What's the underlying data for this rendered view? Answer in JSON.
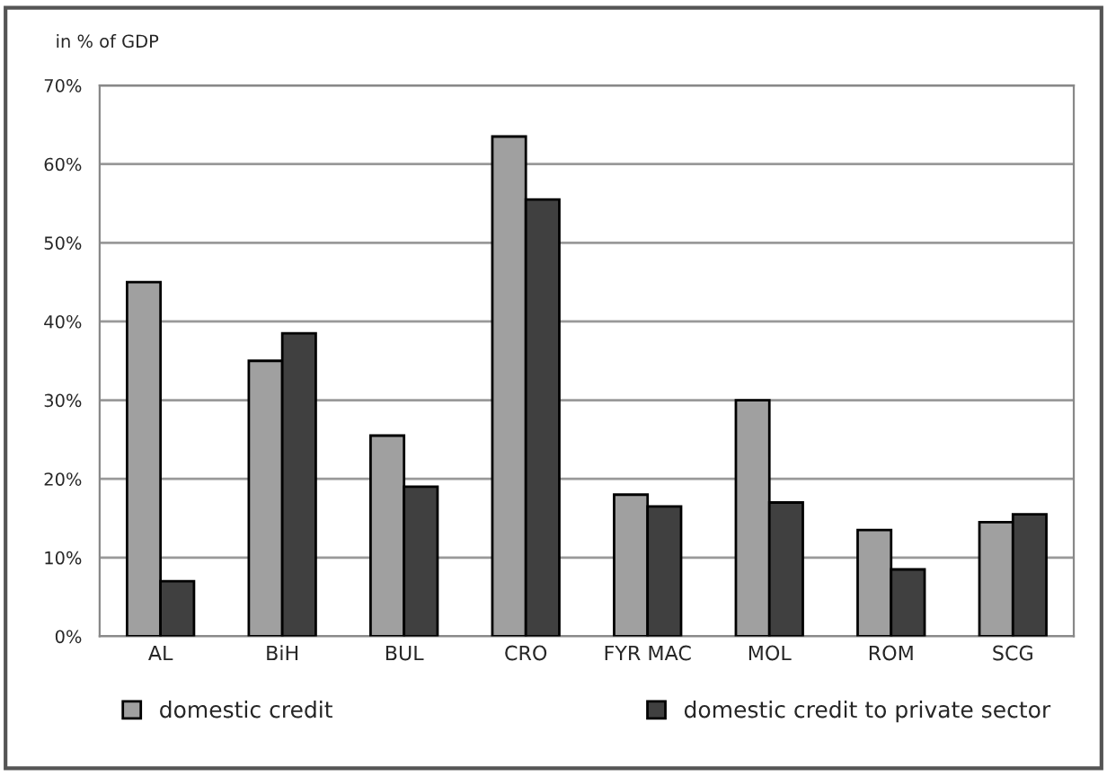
{
  "chart_data": {
    "type": "bar",
    "ylabel": "in % of GDP",
    "categories": [
      "AL",
      "BiH",
      "BUL",
      "CRO",
      "FYR MAC",
      "MOL",
      "ROM",
      "SCG"
    ],
    "series": [
      {
        "name": "domestic credit",
        "color": "#a0a0a0",
        "values": [
          45,
          35,
          25.5,
          63.5,
          18,
          30,
          13.5,
          14.5
        ]
      },
      {
        "name": "domestic credit to private sector",
        "color": "#404040",
        "values": [
          7,
          38.5,
          19,
          55.5,
          16.5,
          17,
          8.5,
          15.5
        ]
      }
    ],
    "ylim": [
      0,
      70
    ],
    "yticks": [
      {
        "value": 0,
        "label": "0%"
      },
      {
        "value": 10,
        "label": "10%"
      },
      {
        "value": 20,
        "label": "20%"
      },
      {
        "value": 30,
        "label": "30%"
      },
      {
        "value": 40,
        "label": "40%"
      },
      {
        "value": 50,
        "label": "50%"
      },
      {
        "value": 60,
        "label": "60%"
      },
      {
        "value": 70,
        "label": "70%"
      }
    ],
    "grid": "y",
    "legend": "bottom"
  }
}
